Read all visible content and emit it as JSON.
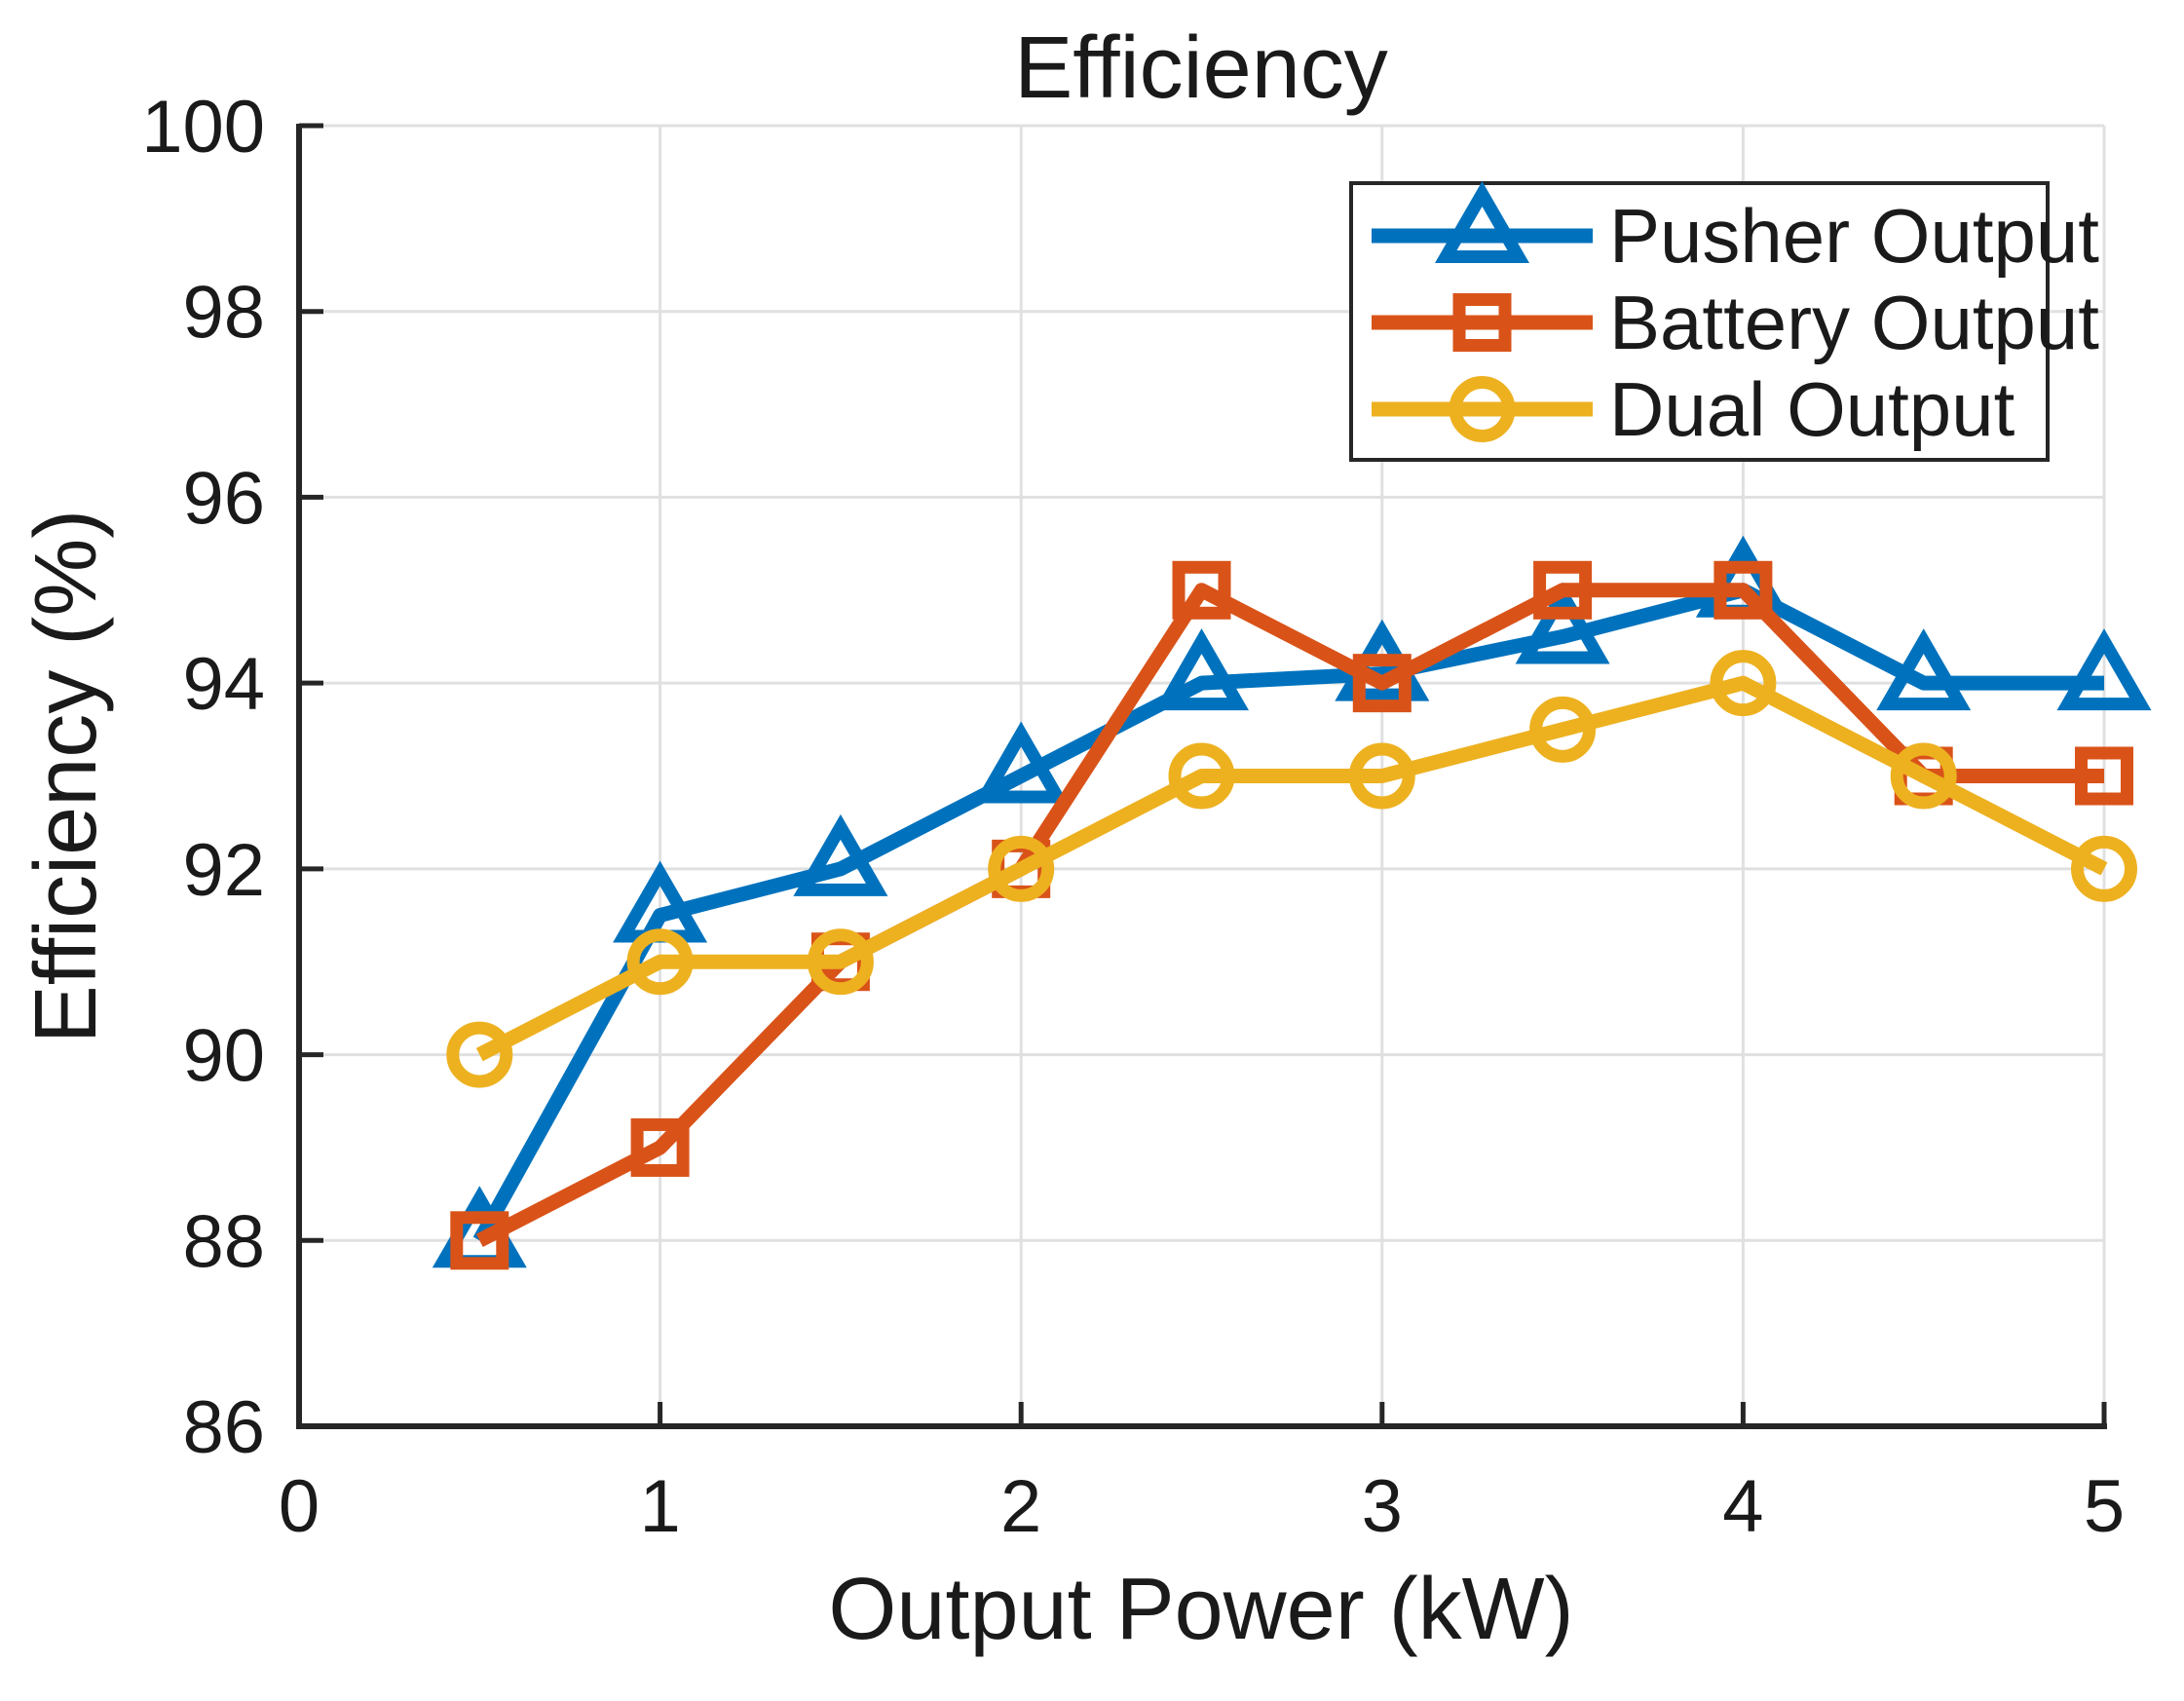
{
  "figure": {
    "title": "Efficiency",
    "xlabel": "Output Power (kW)",
    "ylabel": "Efficiency (%)"
  },
  "chart_data": {
    "type": "line",
    "title": "Efficiency",
    "xlabel": "Output Power (kW)",
    "ylabel": "Efficiency (%)",
    "xlim": [
      0,
      5
    ],
    "ylim": [
      86,
      100
    ],
    "xticks": [
      0,
      1,
      2,
      3,
      4,
      5
    ],
    "yticks": [
      86,
      88,
      90,
      92,
      94,
      96,
      98,
      100
    ],
    "grid": true,
    "legend_position": "upper-right-inside",
    "x": [
      0.5,
      1,
      1.5,
      2,
      2.5,
      3,
      3.5,
      4,
      4.5,
      5
    ],
    "series": [
      {
        "name": "Pusher Output",
        "marker": "triangle",
        "color": "#0072BD",
        "values": [
          88,
          91.5,
          92,
          93,
          94,
          94.1,
          94.5,
          95,
          94,
          94
        ]
      },
      {
        "name": "Battery Output",
        "marker": "square",
        "color": "#D95319",
        "values": [
          88,
          89,
          91,
          92,
          95,
          94,
          95,
          95,
          93,
          93
        ]
      },
      {
        "name": "Dual Output",
        "marker": "circle",
        "color": "#EDB120",
        "values": [
          90,
          91,
          91,
          92,
          93,
          93,
          93.5,
          94,
          93,
          92
        ]
      }
    ],
    "colors": {
      "axis": "#262626",
      "grid": "#e0e0e0",
      "text": "#1a1a1a",
      "background": "#ffffff",
      "legend_border": "#262626",
      "legend_background": "#ffffff"
    }
  }
}
